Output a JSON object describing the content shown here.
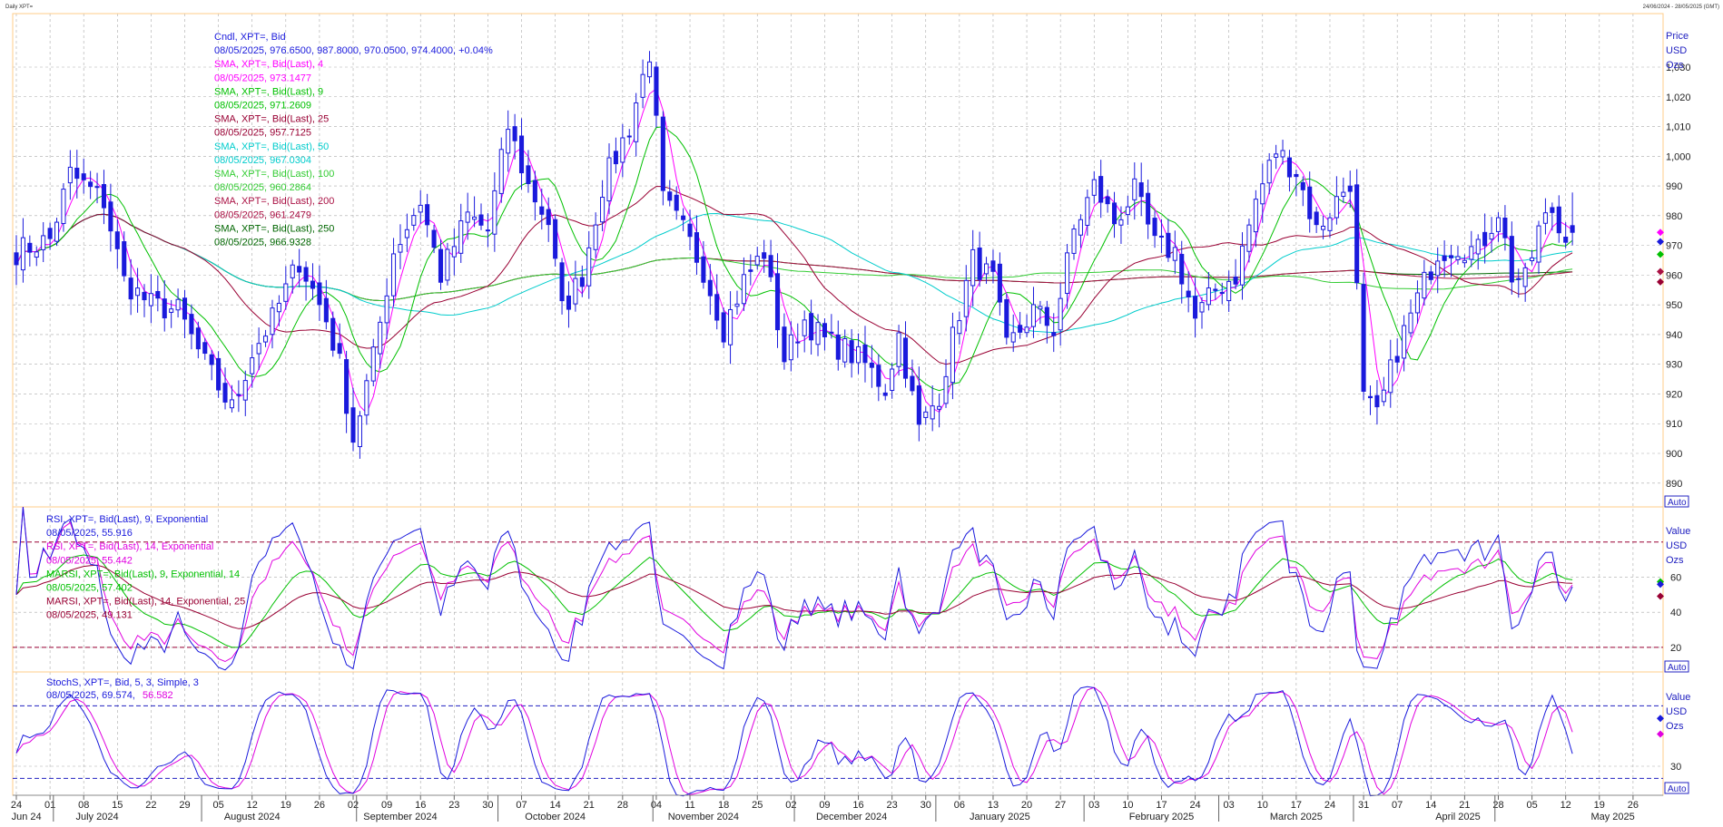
{
  "header": {
    "left": "Daily XPT=",
    "right": "24/06/2024 - 28/05/2025 (GMT)"
  },
  "colors": {
    "candle": "#1a1adc",
    "sma4": "#ff00ff",
    "sma9": "#00c000",
    "sma25": "#990033",
    "sma50": "#00cccc",
    "sma100": "#33cc33",
    "sma200": "#aa1144",
    "sma250": "#006600",
    "rsi9": "#1a1adc",
    "rsi14": "#e000e0",
    "grid": "#aaaaaa",
    "frame": "#ffcc88"
  },
  "price_panel": {
    "units": [
      "Price",
      "USD",
      "Ozs"
    ],
    "auto": "Auto",
    "legend": [
      {
        "label": "Cndl, XPT=, Bid",
        "color": "#1a1adc"
      },
      {
        "label": "08/05/2025, 976.6500, 987.8000, 970.0500, 974.4000, +0.04%",
        "color": "#1a1adc"
      },
      {
        "label": "SMA, XPT=, Bid(Last),  4",
        "color": "#ff00ff"
      },
      {
        "label": "08/05/2025, 973.1477",
        "color": "#ff00ff"
      },
      {
        "label": "SMA, XPT=, Bid(Last),  9",
        "color": "#00c000"
      },
      {
        "label": "08/05/2025, 971.2609",
        "color": "#00c000"
      },
      {
        "label": "SMA, XPT=, Bid(Last),  25",
        "color": "#990033"
      },
      {
        "label": "08/05/2025, 957.7125",
        "color": "#990033"
      },
      {
        "label": "SMA, XPT=, Bid(Last),  50",
        "color": "#00cccc"
      },
      {
        "label": "08/05/2025, 967.0304",
        "color": "#00cccc"
      },
      {
        "label": "SMA, XPT=, Bid(Last),  100",
        "color": "#33cc33"
      },
      {
        "label": "08/05/2025, 960.2864",
        "color": "#33cc33"
      },
      {
        "label": "SMA, XPT=, Bid(Last),  200",
        "color": "#aa1144"
      },
      {
        "label": "08/05/2025, 961.2479",
        "color": "#aa1144"
      },
      {
        "label": "SMA, XPT=, Bid(Last),  250",
        "color": "#006600"
      },
      {
        "label": "08/05/2025, 966.9328",
        "color": "#006600"
      }
    ]
  },
  "rsi_panel": {
    "units": [
      "Value",
      "USD",
      "Ozs"
    ],
    "auto": "Auto",
    "legend": [
      {
        "label": "RSI, XPT=, Bid(Last),  9, Exponential",
        "color": "#1a1adc"
      },
      {
        "label": "08/05/2025, 55.916",
        "color": "#1a1adc"
      },
      {
        "label": "RSI, XPT=, Bid(Last),  14, Exponential",
        "color": "#e000e0"
      },
      {
        "label": "08/05/2025, 55.442",
        "color": "#e000e0"
      },
      {
        "label": "MARSI, XPT=, Bid(Last),  9, Exponential, 14",
        "color": "#00c000"
      },
      {
        "label": "08/05/2025, 57.402",
        "color": "#00c000"
      },
      {
        "label": "MARSI, XPT=, Bid(Last),  14, Exponential, 25",
        "color": "#990033"
      },
      {
        "label": "08/05/2025, 49.131",
        "color": "#990033"
      }
    ]
  },
  "stoch_panel": {
    "units": [
      "Value",
      "USD",
      "Ozs"
    ],
    "auto": "Auto",
    "legend_title": "StochS, XPT=, Bid,  5, 3, Simple, 3",
    "legend_value_a": "08/05/2025, 69.574,",
    "legend_value_b": "56.582"
  },
  "chart_data": [
    {
      "type": "candlestick",
      "title": "Cndl, XPT=, Bid",
      "y_ticks": [
        890,
        900,
        910,
        920,
        930,
        940,
        950,
        960,
        970,
        980,
        990,
        1000,
        1010,
        1020,
        1030
      ],
      "y_tick_labels": [
        "890",
        "900",
        "910",
        "920",
        "930",
        "940",
        "950",
        "960",
        "970",
        "980",
        "990",
        "1,000",
        "1,010",
        "1,020",
        "1,030"
      ],
      "ylim": [
        882,
        1048
      ],
      "anchor_closes": [
        [
          0,
          968
        ],
        [
          5,
          972
        ],
        [
          8,
          994
        ],
        [
          13,
          985
        ],
        [
          16,
          958
        ],
        [
          20,
          950
        ],
        [
          24,
          948
        ],
        [
          28,
          930
        ],
        [
          32,
          915
        ],
        [
          35,
          934
        ],
        [
          38,
          945
        ],
        [
          42,
          965
        ],
        [
          46,
          945
        ],
        [
          48,
          930
        ],
        [
          50,
          905
        ],
        [
          53,
          932
        ],
        [
          56,
          968
        ],
        [
          60,
          985
        ],
        [
          63,
          960
        ],
        [
          67,
          980
        ],
        [
          70,
          975
        ],
        [
          73,
          1010
        ],
        [
          76,
          990
        ],
        [
          79,
          978
        ],
        [
          81,
          948
        ],
        [
          84,
          960
        ],
        [
          87,
          990
        ],
        [
          91,
          1010
        ],
        [
          94,
          1035
        ],
        [
          96,
          985
        ],
        [
          99,
          975
        ],
        [
          102,
          962
        ],
        [
          105,
          942
        ],
        [
          108,
          958
        ],
        [
          111,
          968
        ],
        [
          114,
          932
        ],
        [
          117,
          945
        ],
        [
          120,
          938
        ],
        [
          123,
          935
        ],
        [
          126,
          930
        ],
        [
          129,
          922
        ],
        [
          131,
          940
        ],
        [
          134,
          908
        ],
        [
          137,
          920
        ],
        [
          140,
          948
        ],
        [
          142,
          965
        ],
        [
          145,
          958
        ],
        [
          147,
          935
        ],
        [
          151,
          948
        ],
        [
          154,
          942
        ],
        [
          157,
          975
        ],
        [
          160,
          990
        ],
        [
          163,
          978
        ],
        [
          166,
          988
        ],
        [
          169,
          970
        ],
        [
          172,
          968
        ],
        [
          175,
          945
        ],
        [
          178,
          955
        ],
        [
          181,
          960
        ],
        [
          184,
          985
        ],
        [
          187,
          1002
        ],
        [
          190,
          995
        ],
        [
          193,
          975
        ],
        [
          196,
          985
        ],
        [
          198,
          992
        ],
        [
          200,
          918
        ],
        [
          202,
          912
        ],
        [
          205,
          935
        ],
        [
          208,
          952
        ],
        [
          211,
          968
        ],
        [
          214,
          970
        ],
        [
          217,
          968
        ],
        [
          220,
          982
        ],
        [
          222,
          960
        ],
        [
          224,
          958
        ],
        [
          226,
          975
        ],
        [
          228,
          982
        ],
        [
          229,
          975
        ]
      ],
      "wick_pad": [
        1.5,
        5.5
      ],
      "last": {
        "date": "08/05/2025",
        "open": 976.65,
        "high": 987.8,
        "low": 970.05,
        "close": 974.4
      }
    },
    {
      "type": "line",
      "title": "RSI, XPT=, Bid(Last), 9, Exponential",
      "y_ticks": [
        20,
        40,
        60
      ],
      "ylim": [
        6,
        100
      ],
      "levels": [
        20,
        80
      ]
    },
    {
      "type": "line",
      "title": "StochS, XPT=, Bid, 5, 3, Simple, 3",
      "y_ticks": [
        30
      ],
      "ylim": [
        6,
        108
      ],
      "levels": [
        20,
        80
      ]
    }
  ],
  "x_axis": {
    "day_ticks": [
      {
        "i": 0,
        "label": "24"
      },
      {
        "i": 5,
        "label": "01"
      },
      {
        "i": 10,
        "label": "08"
      },
      {
        "i": 15,
        "label": "15"
      },
      {
        "i": 20,
        "label": "22"
      },
      {
        "i": 25,
        "label": "29"
      },
      {
        "i": 30,
        "label": "05"
      },
      {
        "i": 35,
        "label": "12"
      },
      {
        "i": 40,
        "label": "19"
      },
      {
        "i": 45,
        "label": "26"
      },
      {
        "i": 50,
        "label": "02"
      },
      {
        "i": 55,
        "label": "09"
      },
      {
        "i": 60,
        "label": "16"
      },
      {
        "i": 65,
        "label": "23"
      },
      {
        "i": 70,
        "label": "30"
      },
      {
        "i": 75,
        "label": "07"
      },
      {
        "i": 80,
        "label": "14"
      },
      {
        "i": 85,
        "label": "21"
      },
      {
        "i": 90,
        "label": "28"
      },
      {
        "i": 95,
        "label": "04"
      },
      {
        "i": 100,
        "label": "11"
      },
      {
        "i": 105,
        "label": "18"
      },
      {
        "i": 110,
        "label": "25"
      },
      {
        "i": 115,
        "label": "02"
      },
      {
        "i": 120,
        "label": "09"
      },
      {
        "i": 125,
        "label": "16"
      },
      {
        "i": 130,
        "label": "23"
      },
      {
        "i": 135,
        "label": "30"
      },
      {
        "i": 140,
        "label": "06"
      },
      {
        "i": 145,
        "label": "13"
      },
      {
        "i": 150,
        "label": "20"
      },
      {
        "i": 155,
        "label": "27"
      },
      {
        "i": 160,
        "label": "03"
      },
      {
        "i": 165,
        "label": "10"
      },
      {
        "i": 170,
        "label": "17"
      },
      {
        "i": 175,
        "label": "24"
      },
      {
        "i": 180,
        "label": "03"
      },
      {
        "i": 185,
        "label": "10"
      },
      {
        "i": 190,
        "label": "17"
      },
      {
        "i": 195,
        "label": "24"
      },
      {
        "i": 200,
        "label": "31"
      },
      {
        "i": 205,
        "label": "07"
      },
      {
        "i": 210,
        "label": "14"
      },
      {
        "i": 215,
        "label": "21"
      },
      {
        "i": 220,
        "label": "28"
      },
      {
        "i": 225,
        "label": "05"
      },
      {
        "i": 230,
        "label": "12"
      },
      {
        "i": 235,
        "label": "19"
      },
      {
        "i": 240,
        "label": "26"
      }
    ],
    "months": [
      {
        "label": "Jun 24",
        "i": 1.5
      },
      {
        "label": "July 2024",
        "i": 12
      },
      {
        "label": "August 2024",
        "i": 35
      },
      {
        "label": "September 2024",
        "i": 57
      },
      {
        "label": "October 2024",
        "i": 80
      },
      {
        "label": "November 2024",
        "i": 102
      },
      {
        "label": "December 2024",
        "i": 124
      },
      {
        "label": "January 2025",
        "i": 146
      },
      {
        "label": "February 2025",
        "i": 170
      },
      {
        "label": "March 2025",
        "i": 190
      },
      {
        "label": "April 2025",
        "i": 214
      },
      {
        "label": "May 2025",
        "i": 237
      }
    ],
    "month_seps": [
      5.5,
      27.5,
      50.5,
      71.5,
      94.5,
      115.5,
      136.5,
      158.5,
      178.5,
      198.5,
      219.5
    ]
  }
}
